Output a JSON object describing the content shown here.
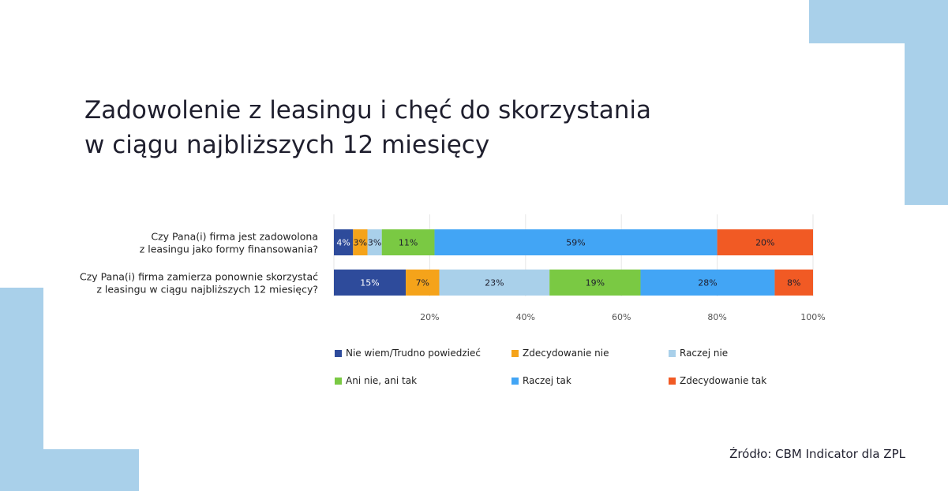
{
  "title_lines": [
    "Zadowolenie z leasingu i chęć do skorzystania",
    "w ciągu najbliższych 12 miesięcy"
  ],
  "source": "Źródło: CBM Indicator dla ZPL",
  "colors": {
    "decor": "#a9d0ea",
    "series": [
      "#2e4b9b",
      "#f5a31a",
      "#a9d0ea",
      "#7ac943",
      "#42a5f5",
      "#f15a24"
    ]
  },
  "chart_data": {
    "type": "bar",
    "orientation": "horizontal",
    "stacked": true,
    "categories": [
      [
        "Czy Pana(i) firma jest zadowolona",
        "z leasingu jako formy finansowania?"
      ],
      [
        "Czy Pana(i) firma zamierza ponownie skorzystać",
        "z leasingu w ciągu najbliższych 12 miesięcy?"
      ]
    ],
    "series": [
      {
        "name": "Nie wiem/Trudno powiedzieć",
        "values": [
          4,
          15
        ],
        "labels": [
          "4%",
          "15%"
        ]
      },
      {
        "name": "Zdecydowanie nie",
        "values": [
          3,
          7
        ],
        "labels": [
          "3%",
          "7%"
        ]
      },
      {
        "name": "Raczej nie",
        "values": [
          3,
          23
        ],
        "labels": [
          "3%",
          "23%"
        ]
      },
      {
        "name": "Ani nie, ani tak",
        "values": [
          11,
          19
        ],
        "labels": [
          "11%",
          "19%"
        ]
      },
      {
        "name": "Raczej tak",
        "values": [
          59,
          28
        ],
        "labels": [
          "59%",
          "28%"
        ]
      },
      {
        "name": "Zdecydowanie tak",
        "values": [
          20,
          8
        ],
        "labels": [
          "20%",
          "8%"
        ]
      }
    ],
    "xlim": [
      0,
      100
    ],
    "xticks": [
      20,
      40,
      60,
      80,
      100
    ],
    "xtick_labels": [
      "20%",
      "40%",
      "60%",
      "80%",
      "100%"
    ],
    "grid": "vertical",
    "legend_position": "bottom"
  }
}
